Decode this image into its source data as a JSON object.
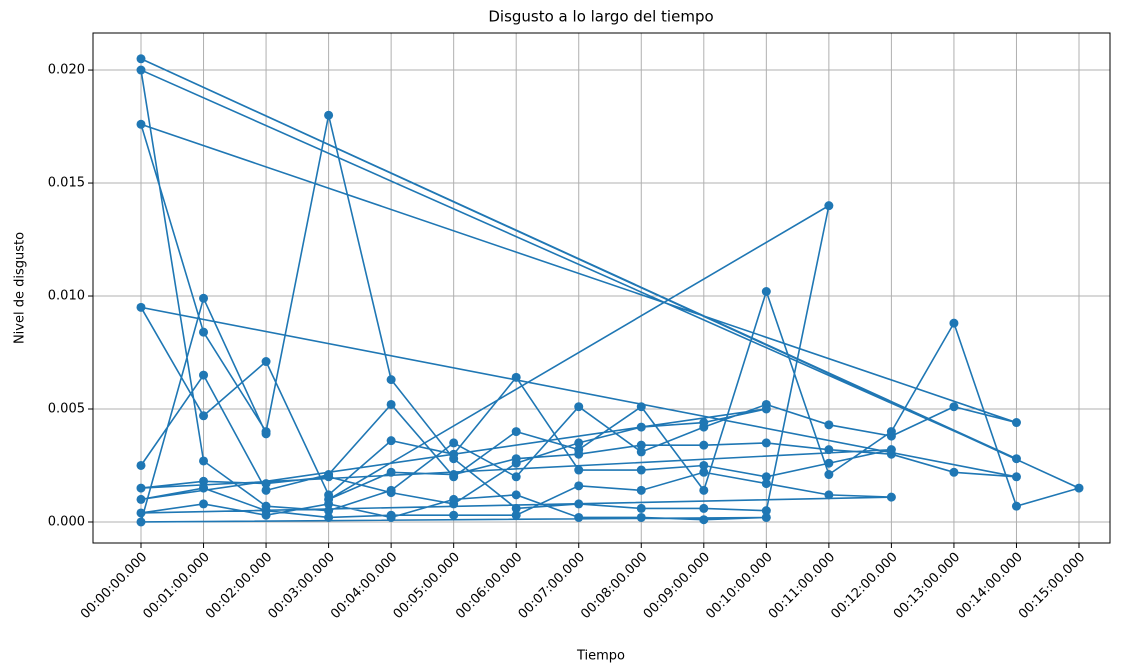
{
  "chart_data": {
    "type": "line",
    "title": "Disgusto a lo largo del tiempo",
    "xlabel": "Tiempo",
    "ylabel": "Nivel de disgusto",
    "categories": [
      "00:00:00.000",
      "00:01:00.000",
      "00:02:00.000",
      "00:03:00.000",
      "00:04:00.000",
      "00:05:00.000",
      "00:06:00.000",
      "00:07:00.000",
      "00:08:00.000",
      "00:09:00.000",
      "00:10:00.000",
      "00:11:00.000",
      "00:12:00.000",
      "00:13:00.000",
      "00:14:00.000",
      "00:15:00.000"
    ],
    "series": [
      {
        "color": "#1f77b4",
        "x": [
          "00:00:00.000",
          "00:01:00.000",
          "00:02:00.000",
          "00:03:00.000",
          "00:04:00.000",
          "00:05:00.000",
          "00:06:00.000",
          "00:07:00.000",
          "00:08:00.000",
          "00:09:00.000",
          "00:10:00.000",
          "00:11:00.000",
          "00:12:00.000",
          "00:13:00.000",
          "00:14:00.000",
          "00:15:00.000",
          "00:00:00.000",
          "00:14:00.000",
          "00:00:00.000",
          "00:01:00.000",
          "00:02:00.000",
          "00:03:00.000",
          "00:04:00.000",
          "00:05:00.000",
          "00:06:00.000",
          "00:07:00.000",
          "00:08:00.000",
          "00:09:00.000",
          "00:10:00.000",
          "00:11:00.000",
          "00:12:00.000",
          "00:13:00.000",
          "00:14:00.000",
          "00:00:00.000",
          "00:01:00.000",
          "00:02:00.000",
          "00:03:00.000",
          "00:04:00.000",
          "00:05:00.000",
          "00:06:00.000",
          "00:07:00.000",
          "00:08:00.000",
          "00:09:00.000",
          "00:10:00.000",
          "00:11:00.000",
          "00:03:00.000",
          "00:04:00.000",
          "00:05:00.000",
          "00:06:00.000",
          "00:07:00.000",
          "00:08:00.000",
          "00:09:00.000",
          "00:10:00.000",
          "00:11:00.000",
          "00:12:00.000",
          "00:13:00.000",
          "00:14:00.000",
          "00:00:00.000",
          "00:01:00.000",
          "00:02:00.000",
          "00:03:00.000",
          "00:04:00.000",
          "00:05:00.000",
          "00:06:00.000",
          "00:07:00.000",
          "00:08:00.000",
          "00:09:00.000",
          "00:10:00.000",
          "00:11:00.000",
          "00:12:00.000",
          "00:00:00.000",
          "00:01:00.000",
          "00:02:00.000",
          "00:03:00.000",
          "00:04:00.000",
          "00:05:00.000",
          "00:06:00.000",
          "00:07:00.000",
          "00:08:00.000",
          "00:09:00.000",
          "00:10:00.000",
          "00:00:00.000",
          "00:01:00.000",
          "00:02:00.000",
          "00:03:00.000",
          "00:04:00.000",
          "00:05:00.000",
          "00:06:00.000",
          "00:07:00.000",
          "00:08:00.000",
          "00:09:00.000",
          "00:10:00.000",
          "00:11:00.000",
          "00:12:00.000",
          "00:00:00.000",
          "00:01:00.000",
          "00:02:00.000",
          "00:03:00.000",
          "00:04:00.000",
          "00:05:00.000",
          "00:06:00.000",
          "00:07:00.000",
          "00:08:00.000",
          "00:09:00.000",
          "00:10:00.000",
          "00:00:00.000",
          "00:01:00.000",
          "00:02:00.000"
        ],
        "values": [
          0.0025,
          0.0065,
          0.0014,
          0.0021,
          0.0052,
          0.002,
          0.004,
          0.0032,
          0.0051,
          0.0014,
          0.0102,
          0.0021,
          0.004,
          0.0088,
          0.0007,
          0.0015,
          0.0205,
          0.0028,
          0.02,
          0.0027,
          0.0007,
          0.0005,
          0.0014,
          0.0035,
          0.002,
          0.0051,
          0.0031,
          0.0042,
          0.0052,
          0.0043,
          0.0038,
          0.0051,
          0.0044,
          0.0176,
          0.0084,
          0.004,
          0.018,
          0.0063,
          0.0028,
          0.0006,
          0.0008,
          0.0006,
          0.0006,
          0.0005,
          0.014,
          0.001,
          0.0022,
          0.0021,
          0.0028,
          0.003,
          0.0034,
          0.0034,
          0.0035,
          0.0032,
          0.003,
          0.0022,
          0.002,
          0.0095,
          0.0047,
          0.0071,
          0.0012,
          0.0036,
          0.003,
          0.0064,
          0.0023,
          0.0023,
          0.0025,
          0.002,
          0.0026,
          0.0032,
          0.0015,
          0.0018,
          0.0017,
          0.002,
          0.0013,
          0.0008,
          0.0026,
          0.0035,
          0.0042,
          0.0044,
          0.005,
          0.001,
          0.0015,
          0.0005,
          0.0002,
          0.0003,
          0.0003,
          0.0003,
          0.0016,
          0.0014,
          0.0022,
          0.0017,
          0.0012,
          0.0011,
          0.0004,
          0.0008,
          0.0003,
          0.0008,
          0.0002,
          0.001,
          0.0012,
          0.0002,
          0.0002,
          0.0001,
          0.0002,
          0.0,
          0.0099,
          0.0039
        ]
      }
    ],
    "ylim": [
      -0.00093,
      0.02164
    ],
    "yticks": [
      {
        "value": 0,
        "label": "0.000"
      },
      {
        "value": 0.005,
        "label": "0.005"
      },
      {
        "value": 0.01,
        "label": "0.010"
      },
      {
        "value": 0.015,
        "label": "0.015"
      },
      {
        "value": 0.02,
        "label": "0.020"
      }
    ],
    "grid": true
  }
}
